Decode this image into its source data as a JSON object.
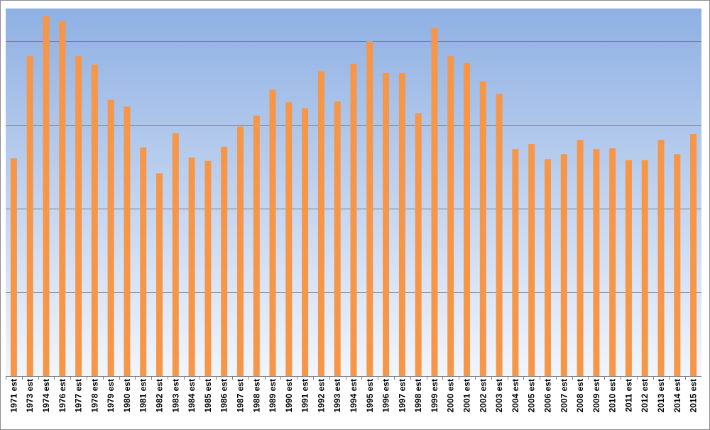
{
  "chart_data": {
    "type": "bar",
    "title": "",
    "xlabel": "",
    "ylabel": "",
    "ylim": [
      0,
      4.5
    ],
    "grid": true,
    "legend": "none",
    "categories": [
      "1971 est",
      "1973 est",
      "1974 est",
      "1976 est",
      "1977 est",
      "1978 est",
      "1979 est",
      "1980 est",
      "1981 est",
      "1982 est",
      "1983 est",
      "1984 est",
      "1985 est",
      "1986 est",
      "1987 est",
      "1988 est",
      "1989 est",
      "1990 est",
      "1991 est",
      "1992 est",
      "1993 est",
      "1994 est",
      "1995 est",
      "1996 est",
      "1997 est",
      "1998 est",
      "1999 est",
      "2000 est",
      "2001 est",
      "2002 est",
      "2003 est",
      "2004 est",
      "2005 est",
      "2006 est",
      "2007 est",
      "2008 est",
      "2009 est",
      "2010 est",
      "2011 est",
      "2012 est",
      "2013 est",
      "2014 est",
      "2015 est"
    ],
    "values": [
      2.6,
      3.82,
      4.3,
      4.24,
      3.82,
      3.72,
      3.3,
      3.22,
      2.73,
      2.42,
      2.9,
      2.61,
      2.57,
      2.74,
      2.98,
      3.11,
      3.42,
      3.27,
      3.2,
      3.64,
      3.28,
      3.73,
      4.0,
      3.62,
      3.62,
      3.14,
      4.16,
      3.82,
      3.74,
      3.52,
      3.37,
      2.71,
      2.77,
      2.59,
      2.65,
      2.82,
      2.71,
      2.72,
      2.58,
      2.58,
      2.82,
      2.65,
      2.89
    ]
  },
  "colors": {
    "bar": "#f79646",
    "bg_top": "#8eb0e3",
    "bg_bottom": "#f2f5fc",
    "grid": "#808080",
    "frame": "#8c8c8c"
  }
}
